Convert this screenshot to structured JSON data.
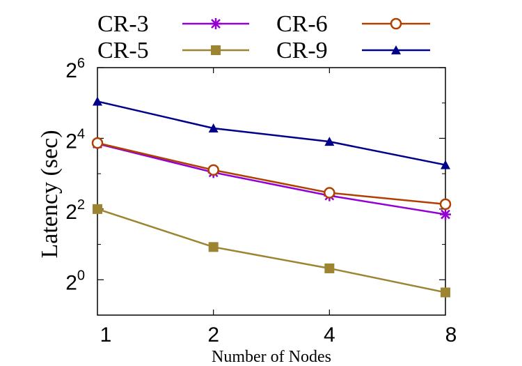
{
  "chart_data": {
    "type": "line",
    "title": "",
    "xlabel": "Number of Nodes",
    "ylabel": "Latency (sec)",
    "x_scale": "log2",
    "y_scale": "log2",
    "x": [
      1,
      2,
      4,
      8
    ],
    "x_tick_labels": [
      "1",
      "2",
      "4",
      "8"
    ],
    "y_ticks": [
      {
        "value": 1,
        "base": "2",
        "exp": "0"
      },
      {
        "value": 4,
        "base": "2",
        "exp": "2"
      },
      {
        "value": 16,
        "base": "2",
        "exp": "4"
      },
      {
        "value": 64,
        "base": "2",
        "exp": "6"
      }
    ],
    "ylim": [
      0.5,
      64
    ],
    "grid": false,
    "legend_position": "top",
    "series": [
      {
        "name": "CR-3",
        "color": "#9400d3",
        "marker": "asterisk",
        "values": [
          14.4,
          8.2,
          5.2,
          3.6
        ]
      },
      {
        "name": "CR-6",
        "color": "#b04000",
        "marker": "open-circle",
        "values": [
          14.6,
          8.6,
          5.5,
          4.4
        ]
      },
      {
        "name": "CR-5",
        "color": "#9c8430",
        "marker": "filled-square",
        "values": [
          4.0,
          1.9,
          1.25,
          0.78
        ]
      },
      {
        "name": "CR-9",
        "color": "#00008b",
        "marker": "filled-triangle",
        "values": [
          33.0,
          19.5,
          15.0,
          9.5
        ]
      }
    ]
  }
}
